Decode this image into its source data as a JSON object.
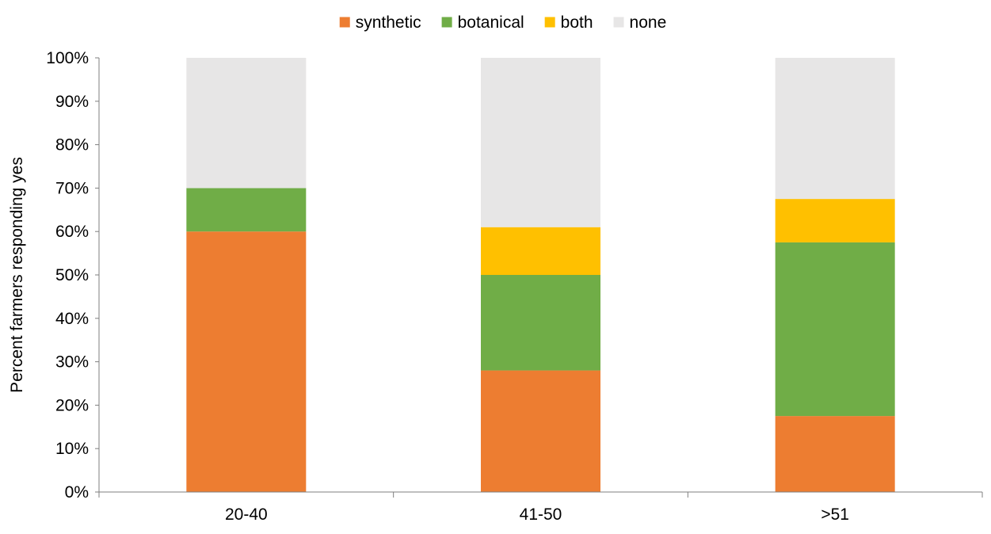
{
  "chart_data": {
    "type": "bar",
    "stacked": true,
    "title": "",
    "xlabel": "",
    "ylabel": "Percent farmers responding yes",
    "ylim": [
      0,
      100
    ],
    "y_ticks": [
      "0%",
      "10%",
      "20%",
      "30%",
      "40%",
      "50%",
      "60%",
      "70%",
      "80%",
      "90%",
      "100%"
    ],
    "categories": [
      "20-40",
      "41-50",
      ">51"
    ],
    "legend_position": "top",
    "grid": false,
    "series": [
      {
        "name": "synthetic",
        "color": "#ED7D31",
        "values": [
          60,
          28,
          17.5
        ]
      },
      {
        "name": "botanical",
        "color": "#70AD47",
        "values": [
          10,
          22,
          40
        ]
      },
      {
        "name": "both",
        "color": "#FFC000",
        "values": [
          0,
          11,
          10
        ]
      },
      {
        "name": "none",
        "color": "#E7E6E6",
        "values": [
          30,
          39,
          32.5
        ]
      }
    ]
  }
}
